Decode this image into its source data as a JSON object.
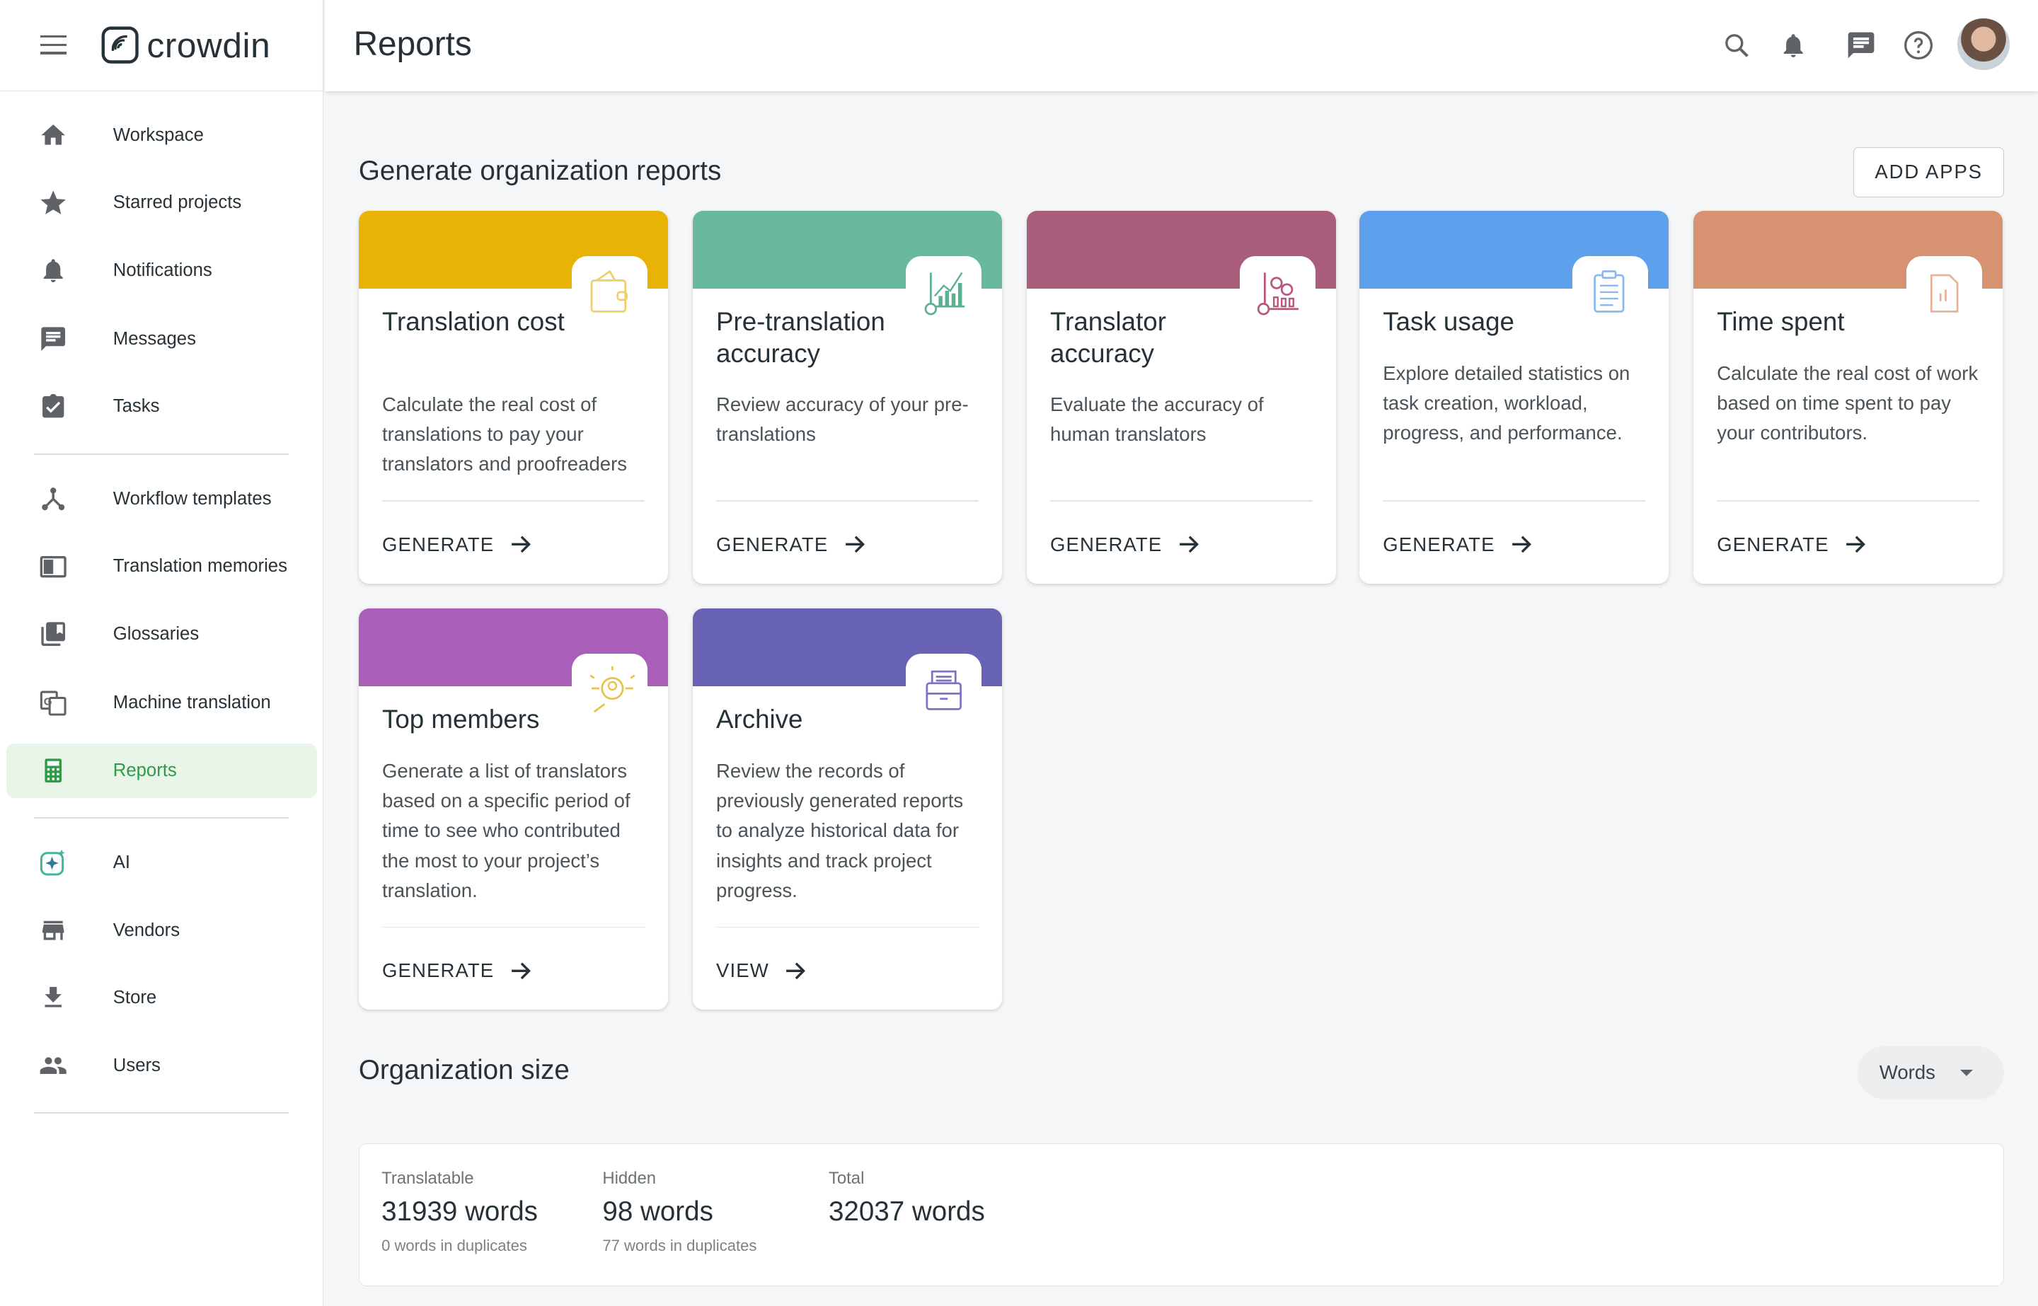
{
  "app": {
    "name": "crowdin"
  },
  "header": {
    "title": "Reports",
    "icons": [
      "search-icon",
      "bell-icon",
      "chat-icon",
      "help-icon",
      "avatar"
    ]
  },
  "sidebar": {
    "items": [
      {
        "label": "Workspace",
        "icon": "home-icon"
      },
      {
        "label": "Starred projects",
        "icon": "star-icon"
      },
      {
        "label": "Notifications",
        "icon": "bell-icon"
      },
      {
        "label": "Messages",
        "icon": "message-icon"
      },
      {
        "label": "Tasks",
        "icon": "clipboard-check-icon"
      },
      {
        "label": "Workflow templates",
        "icon": "workflow-icon"
      },
      {
        "label": "Translation memories",
        "icon": "translation-memory-icon"
      },
      {
        "label": "Glossaries",
        "icon": "glossary-icon"
      },
      {
        "label": "Machine translation",
        "icon": "machine-translation-icon"
      },
      {
        "label": "Reports",
        "icon": "calculator-icon",
        "active": true
      },
      {
        "label": "AI",
        "icon": "ai-sparkle-icon"
      },
      {
        "label": "Vendors",
        "icon": "store-front-icon"
      },
      {
        "label": "Store",
        "icon": "download-icon"
      },
      {
        "label": "Users",
        "icon": "users-icon"
      }
    ]
  },
  "reports": {
    "title": "Generate organization reports",
    "add_apps": "ADD APPS",
    "cards": [
      {
        "title": "Translation cost",
        "desc": "Calculate the real cost of translations to pay your translators and proofreaders",
        "action": "GENERATE",
        "color": "#e9b306",
        "icon": "wallet-icon"
      },
      {
        "title": "Pre-translation accuracy",
        "desc": "Review accuracy of your pre-translations",
        "action": "GENERATE",
        "color": "#68b89c",
        "icon": "chart-growth-icon"
      },
      {
        "title": "Translator accuracy",
        "desc": "Evaluate the accuracy of human translators",
        "action": "GENERATE",
        "color": "#a85e7a",
        "icon": "people-chart-icon"
      },
      {
        "title": "Task usage",
        "desc": "Explore detailed statistics on task creation, workload, progress, and performance.",
        "action": "GENERATE",
        "color": "#5ea0ec",
        "icon": "clipboard-list-icon"
      },
      {
        "title": "Time spent",
        "desc": "Calculate the real cost of work based on time spent to pay your contributors.",
        "action": "GENERATE",
        "color": "#d79272",
        "icon": "document-chart-icon"
      },
      {
        "title": "Top members",
        "desc": "Generate a list of translators based on a specific period of time to see who contributed the most to your project’s translation.",
        "action": "GENERATE",
        "color": "#a95eb8",
        "icon": "member-search-icon"
      },
      {
        "title": "Archive",
        "desc": "Review the records of previously generated reports to analyze historical data for insights and track project progress.",
        "action": "VIEW",
        "color": "#6963b6",
        "icon": "archive-icon"
      }
    ]
  },
  "org_size": {
    "title": "Organization size",
    "unit_select": "Words",
    "stats": [
      {
        "label": "Translatable",
        "value": "31939 words",
        "sub": "0 words in duplicates"
      },
      {
        "label": "Hidden",
        "value": "98 words",
        "sub": "77 words in duplicates"
      },
      {
        "label": "Total",
        "value": "32037 words",
        "sub": ""
      }
    ]
  }
}
